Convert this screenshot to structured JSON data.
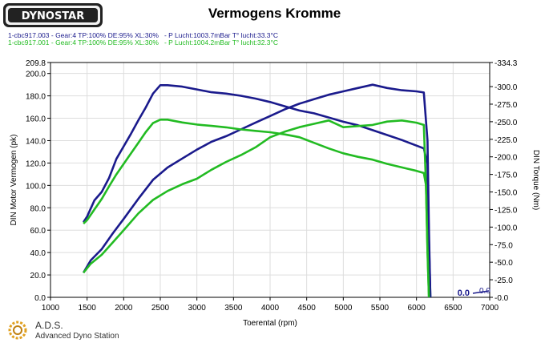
{
  "logo_text": "DYNOSTAR",
  "title": "Vermogens Kromme",
  "runs": [
    {
      "label": "1-cbc917.003 - Gear:4 TP:100% DE:95% XL:30%   - P Lucht:1003.7mBar T° lucht:33.3°C",
      "color": "#1a1a8c"
    },
    {
      "label": "1-cbc917.001 - Gear:4 TP:100% DE:95% XL:30%   - P Lucht:1004.2mBar T° lucht:32.3°C",
      "color": "#22bb22"
    }
  ],
  "footer": {
    "brand": "A.D.S.",
    "subtitle": "Advanced Dyno Station"
  },
  "chart_data": {
    "type": "line",
    "title": "Vermogens Kromme",
    "xlabel": "Toerental (rpm)",
    "ylabel": "DIN Motor Vermogen (pk)",
    "ylabel_right": "DIN Torque (Nm)",
    "xlim": [
      1000,
      7000
    ],
    "ylim": [
      0.0,
      209.8
    ],
    "ylim_right": [
      0.0,
      -334.3
    ],
    "x_ticks": [
      "1000",
      "1500",
      "2000",
      "2500",
      "3000",
      "3500",
      "4000",
      "4500",
      "5000",
      "5500",
      "6000",
      "6500",
      "7000"
    ],
    "y_ticks": [
      "0.0",
      "20.0",
      "40.0",
      "60.0",
      "80.0",
      "100.0",
      "120.0",
      "140.0",
      "160.0",
      "180.0",
      "200.0",
      "209.8"
    ],
    "y_right_ticks": [
      "-0.0",
      "-25.0",
      "-50.0",
      "-75.0",
      "-100.0",
      "-125.0",
      "-150.0",
      "-175.0",
      "-200.0",
      "-225.0",
      "-250.0",
      "-275.0",
      "-300.0",
      "-334.3"
    ],
    "grid": true,
    "end_readout": {
      "left": "0.0",
      "right": "0.0"
    },
    "series": [
      {
        "axis": "left",
        "color": "#1a1a8c",
        "x": [
          1450,
          1550,
          1700,
          1850,
          2000,
          2200,
          2400,
          2600,
          2800,
          3000,
          3200,
          3400,
          3600,
          3800,
          4000,
          4200,
          4400,
          4600,
          4800,
          5000,
          5200,
          5400,
          5600,
          5800,
          6000,
          6100,
          6150,
          6170,
          6190
        ],
        "y": [
          22,
          33,
          43,
          57,
          70,
          88,
          105,
          116,
          124,
          132,
          139,
          144,
          150,
          156,
          162,
          168,
          173,
          177,
          181,
          184,
          187,
          190,
          187,
          185,
          184,
          183,
          140,
          60,
          0
        ]
      },
      {
        "axis": "right",
        "color": "#1a1a8c",
        "x": [
          1450,
          1500,
          1600,
          1700,
          1800,
          1900,
          2000,
          2100,
          2200,
          2300,
          2400,
          2500,
          2600,
          2800,
          3000,
          3200,
          3400,
          3600,
          3800,
          4000,
          4200,
          4400,
          4600,
          4800,
          5000,
          5200,
          5400,
          5600,
          5800,
          6000,
          6100,
          6150,
          6170,
          6190
        ],
        "y": [
          -107,
          -115,
          -138,
          -150,
          -170,
          -197,
          -215,
          -233,
          -252,
          -270,
          -290,
          -302,
          -302,
          -300,
          -296,
          -292,
          -290,
          -287,
          -283,
          -278,
          -272,
          -266,
          -262,
          -256,
          -250,
          -245,
          -238,
          -231,
          -224,
          -216,
          -212,
          -190,
          -80,
          0
        ]
      },
      {
        "axis": "left",
        "color": "#22bb22",
        "x": [
          1450,
          1550,
          1700,
          1850,
          2000,
          2200,
          2400,
          2600,
          2800,
          3000,
          3200,
          3400,
          3600,
          3800,
          4000,
          4200,
          4400,
          4600,
          4800,
          5000,
          5200,
          5400,
          5600,
          5800,
          6000,
          6100,
          6130,
          6150,
          6170
        ],
        "y": [
          22,
          30,
          38,
          49,
          60,
          75,
          87,
          95,
          101,
          106,
          114,
          121,
          127,
          134,
          143,
          148,
          152,
          155,
          158,
          152,
          153,
          154,
          157,
          158,
          156,
          154,
          100,
          40,
          0
        ]
      },
      {
        "axis": "right",
        "color": "#22bb22",
        "x": [
          1450,
          1500,
          1600,
          1700,
          1800,
          1900,
          2000,
          2100,
          2200,
          2300,
          2400,
          2500,
          2600,
          2800,
          3000,
          3200,
          3400,
          3600,
          3800,
          4000,
          4200,
          4400,
          4600,
          4800,
          5000,
          5200,
          5400,
          5600,
          5800,
          6000,
          6100,
          6130,
          6150,
          6170
        ],
        "y": [
          -105,
          -110,
          -125,
          -140,
          -158,
          -175,
          -190,
          -205,
          -220,
          -235,
          -248,
          -253,
          -253,
          -249,
          -246,
          -244,
          -242,
          -239,
          -237,
          -235,
          -232,
          -228,
          -220,
          -212,
          -205,
          -200,
          -196,
          -190,
          -185,
          -180,
          -177,
          -160,
          -70,
          0
        ]
      }
    ]
  }
}
